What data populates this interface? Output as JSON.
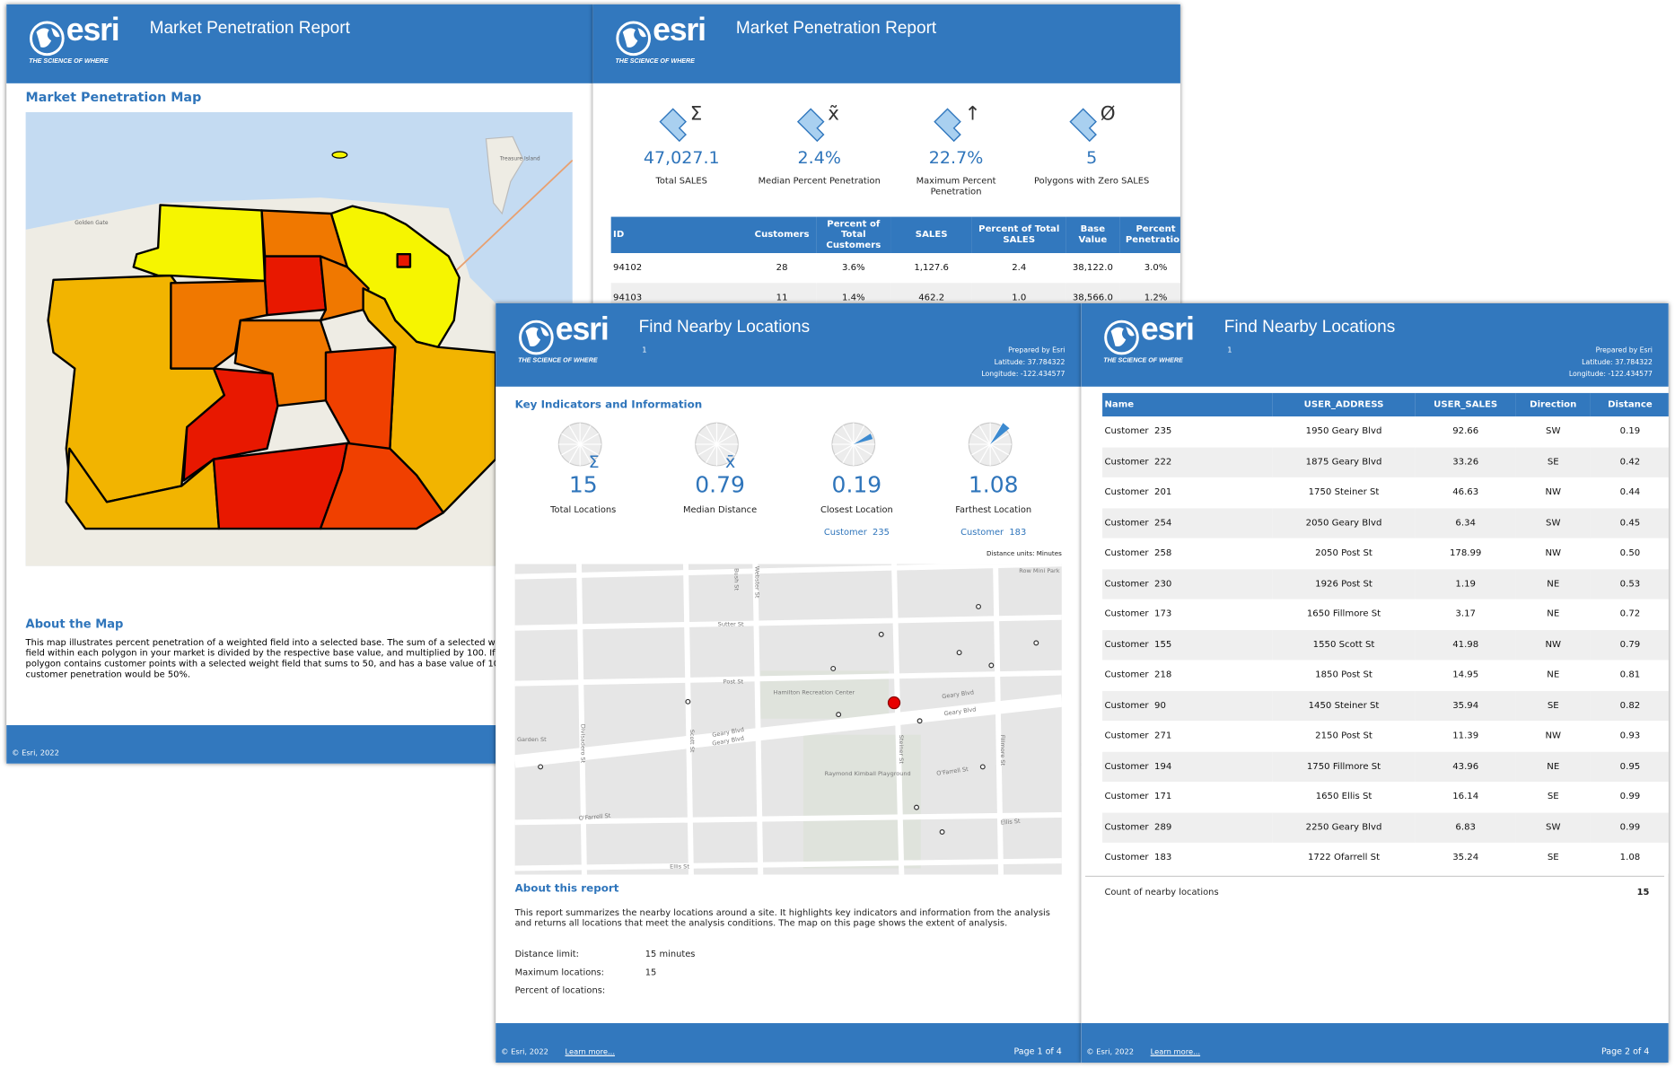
{
  "brand": {
    "logo": "esri",
    "tagline": "THE SCIENCE OF WHERE"
  },
  "pages": [
    {
      "title": "Market Penetration Report",
      "section_title": "Market Penetration Map",
      "map_labels": [
        "Treasure Island",
        "Golden Gate"
      ],
      "about_title": "About the Map",
      "about_text": "This map illustrates percent penetration of a weighted field into a selected base. The sum of a selected weight field within each polygon in your market is divided by the respective base value, and multiplied by 100. If a polygon contains customer points with a selected weight field that sums to 50, and has a base value of 100, the customer penetration would be 50%.",
      "footer": "© Esri, 2022"
    },
    {
      "title": "Market Penetration Report",
      "kpis": [
        {
          "icon": "Σ",
          "value": "47,027.1",
          "label": "Total SALES"
        },
        {
          "icon": "x̃",
          "value": "2.4%",
          "label": "Median Percent Penetration"
        },
        {
          "icon": "↑",
          "value": "22.7%",
          "label": "Maximum Percent Penetration"
        },
        {
          "icon": "Ø",
          "value": "5",
          "label": "Polygons with Zero SALES"
        }
      ],
      "table": {
        "columns": [
          "ID",
          "Customers",
          "Percent of Total Customers",
          "SALES",
          "Percent of Total SALES",
          "Base Value",
          "Percent Penetration"
        ],
        "rows": [
          [
            "94102",
            "28",
            "3.6%",
            "1,127.6",
            "2.4",
            "38,122.0",
            "3.0%"
          ],
          [
            "94103",
            "11",
            "1.4%",
            "462.2",
            "1.0",
            "38,566.0",
            "1.2%"
          ]
        ]
      }
    },
    {
      "title": "Find Nearby Locations",
      "subtitle": "1",
      "prepared": [
        "Prepared by Esri",
        "Latitude: 37.784322",
        "Longitude: -122.434577"
      ],
      "section_title": "Key Indicators and Information",
      "kpis": [
        {
          "icon": "Σ",
          "value": "15",
          "label": "Total Locations"
        },
        {
          "icon": "x̄",
          "value": "0.79",
          "label": "Median Distance"
        },
        {
          "value": "0.19",
          "label": "Closest Location",
          "link": "Customer  235"
        },
        {
          "value": "1.08",
          "label": "Farthest Location",
          "link": "Customer  183"
        }
      ],
      "distance_units": "Distance units: Minutes",
      "map_labels": [
        "Bush St",
        "Sutter St",
        "Post St",
        "Geary Blvd",
        "Geary Blvd",
        "Geary Blvd",
        "Geary Blvd",
        "Hamilton Recreation Center",
        "Raymond Kimball Playground",
        "O'Farrell St",
        "O'Farrell St",
        "Ellis St",
        "Ellis St",
        "Garden St",
        "Divisadero St",
        "Scott St",
        "Steiner St",
        "Fillmore St",
        "Webster St",
        "Row Mini Park"
      ],
      "about_title": "About this report",
      "about_text": "This report summarizes the nearby locations around a site. It highlights key indicators and information from the analysis and returns all locations that meet the analysis conditions. The map on this page shows the extent of analysis.",
      "params": [
        [
          "Distance limit:",
          "15 minutes"
        ],
        [
          "Maximum locations:",
          "15"
        ],
        [
          "Percent of locations:",
          ""
        ]
      ],
      "footer": "© Esri, 2022",
      "learn_more": "Learn more...",
      "page": "Page 1 of 4"
    },
    {
      "title": "Find Nearby Locations",
      "subtitle": "1",
      "prepared": [
        "Prepared by Esri",
        "Latitude: 37.784322",
        "Longitude: -122.434577"
      ],
      "table": {
        "columns": [
          "Name",
          "USER_ADDRESS",
          "USER_SALES",
          "Direction",
          "Distance"
        ],
        "rows": [
          [
            "Customer  235",
            "1950 Geary Blvd",
            "92.66",
            "SW",
            "0.19"
          ],
          [
            "Customer  222",
            "1875 Geary Blvd",
            "33.26",
            "SE",
            "0.42"
          ],
          [
            "Customer  201",
            "1750 Steiner St",
            "46.63",
            "NW",
            "0.44"
          ],
          [
            "Customer  254",
            "2050 Geary Blvd",
            "6.34",
            "SW",
            "0.45"
          ],
          [
            "Customer  258",
            "2050 Post St",
            "178.99",
            "NW",
            "0.50"
          ],
          [
            "Customer  230",
            "1926 Post St",
            "1.19",
            "NE",
            "0.53"
          ],
          [
            "Customer  173",
            "1650 Fillmore St",
            "3.17",
            "NE",
            "0.72"
          ],
          [
            "Customer  155",
            "1550 Scott St",
            "41.98",
            "NW",
            "0.79"
          ],
          [
            "Customer  218",
            "1850 Post St",
            "14.95",
            "NE",
            "0.81"
          ],
          [
            "Customer  90",
            "1450 Steiner St",
            "35.94",
            "SE",
            "0.82"
          ],
          [
            "Customer  271",
            "2150 Post St",
            "11.39",
            "NW",
            "0.93"
          ],
          [
            "Customer  194",
            "1750 Fillmore St",
            "43.96",
            "NE",
            "0.95"
          ],
          [
            "Customer  171",
            "1650 Ellis St",
            "16.14",
            "SE",
            "0.99"
          ],
          [
            "Customer  289",
            "2250 Geary Blvd",
            "6.83",
            "SW",
            "0.99"
          ],
          [
            "Customer  183",
            "1722 Ofarrell St",
            "35.24",
            "SE",
            "1.08"
          ]
        ]
      },
      "count_label": "Count of nearby locations",
      "count_value": "15",
      "footer": "© Esri, 2022",
      "learn_more": "Learn more...",
      "page": "Page 2 of 4"
    }
  ]
}
